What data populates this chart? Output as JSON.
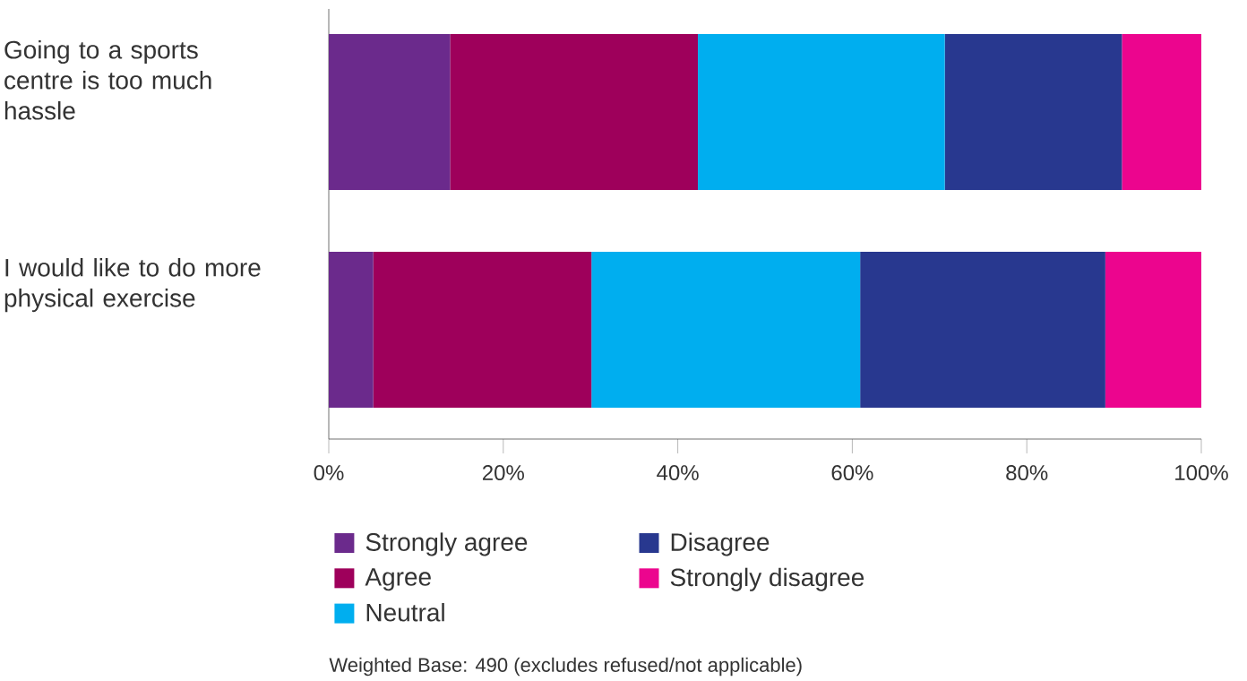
{
  "chart_data": {
    "type": "bar",
    "orientation": "horizontal",
    "stacked": true,
    "categories": [
      "Going to a sports centre is too much hassle",
      "I would like to do more physical exercise"
    ],
    "series": [
      {
        "name": "Strongly agree",
        "color": "#6b2a8c",
        "values": [
          13.9,
          5.1
        ]
      },
      {
        "name": "Agree",
        "color": "#9e005b",
        "values": [
          28.4,
          25.0
        ]
      },
      {
        "name": "Neutral",
        "color": "#00aeef",
        "values": [
          28.3,
          30.8
        ]
      },
      {
        "name": "Disagree",
        "color": "#28388f",
        "values": [
          20.3,
          28.1
        ]
      },
      {
        "name": "Strongly disagree",
        "color": "#ec058e",
        "values": [
          9.1,
          11.0
        ]
      }
    ],
    "xlim": [
      0,
      100
    ],
    "xticks": [
      {
        "value": 0,
        "label": "0%"
      },
      {
        "value": 20,
        "label": "20%"
      },
      {
        "value": 40,
        "label": "40%"
      },
      {
        "value": 60,
        "label": "60%"
      },
      {
        "value": 80,
        "label": "80%"
      },
      {
        "value": 100,
        "label": "100%"
      }
    ],
    "legend": "bottom",
    "grid": false,
    "annotations": [
      "Weighted Base: 490 (excludes refused/not applicable)"
    ]
  }
}
